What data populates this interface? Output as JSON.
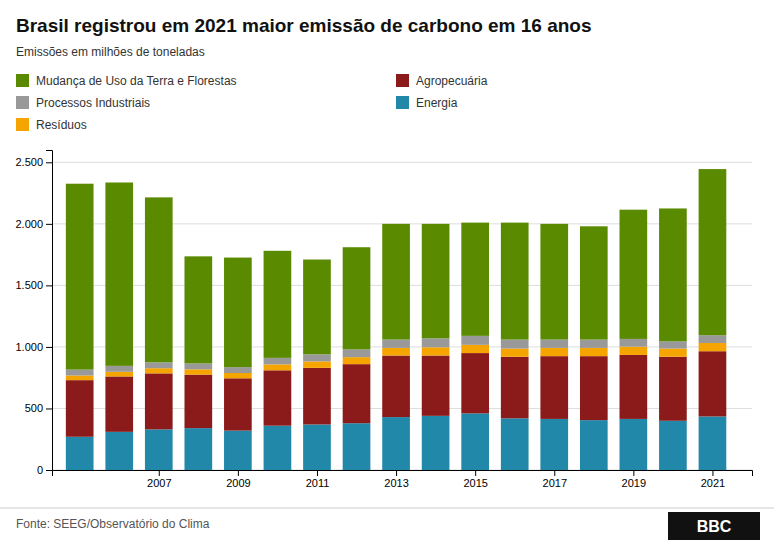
{
  "chart_data": {
    "type": "bar",
    "stacked": true,
    "title": "Brasil registrou em 2021 maior emissão de carbono em 16 anos",
    "subtitle": "Emissões em milhões de toneladas",
    "annotations": [
      "Fonte: SEEG/Observatório do Clima",
      "BBC"
    ],
    "x": [
      2005,
      2006,
      2007,
      2008,
      2009,
      2010,
      2011,
      2012,
      2013,
      2014,
      2015,
      2016,
      2017,
      2018,
      2019,
      2020,
      2021
    ],
    "series": [
      {
        "name": "Energia",
        "color": "#2288aa",
        "values": [
          270,
          310,
          330,
          340,
          320,
          360,
          370,
          380,
          430,
          440,
          460,
          420,
          415,
          405,
          415,
          400,
          435
        ]
      },
      {
        "name": "Agropecuária",
        "color": "#8b1a1a",
        "values": [
          460,
          450,
          455,
          435,
          425,
          450,
          460,
          480,
          500,
          490,
          490,
          500,
          510,
          520,
          520,
          520,
          530
        ]
      },
      {
        "name": "Resíduos",
        "color": "#f5a400",
        "values": [
          38,
          38,
          42,
          43,
          43,
          48,
          52,
          57,
          62,
          67,
          67,
          67,
          67,
          67,
          67,
          67,
          67
        ]
      },
      {
        "name": "Processos Industriais",
        "color": "#999999",
        "values": [
          48,
          48,
          48,
          48,
          48,
          53,
          58,
          63,
          68,
          73,
          73,
          73,
          68,
          68,
          63,
          58,
          63
        ]
      },
      {
        "name": "Mudança de Uso da Terra e Florestas",
        "color": "#5a8a00",
        "values": [
          1510,
          1490,
          1340,
          870,
          890,
          870,
          770,
          830,
          940,
          930,
          920,
          950,
          940,
          920,
          1050,
          1080,
          1350
        ]
      }
    ],
    "xlim": [
      2004.3,
      2022.0
    ],
    "xticks": [
      2007,
      2009,
      2011,
      2013,
      2015,
      2017,
      2019,
      2021
    ],
    "ylim": [
      0,
      2600
    ],
    "yticks": [
      0,
      500,
      {
        "value": 1000,
        "label": "1.000"
      },
      {
        "value": 1500,
        "label": "1.500"
      },
      {
        "value": 2000,
        "label": "2.000"
      },
      {
        "value": 2500,
        "label": "2.500"
      }
    ],
    "grid": true,
    "legend": "top"
  }
}
